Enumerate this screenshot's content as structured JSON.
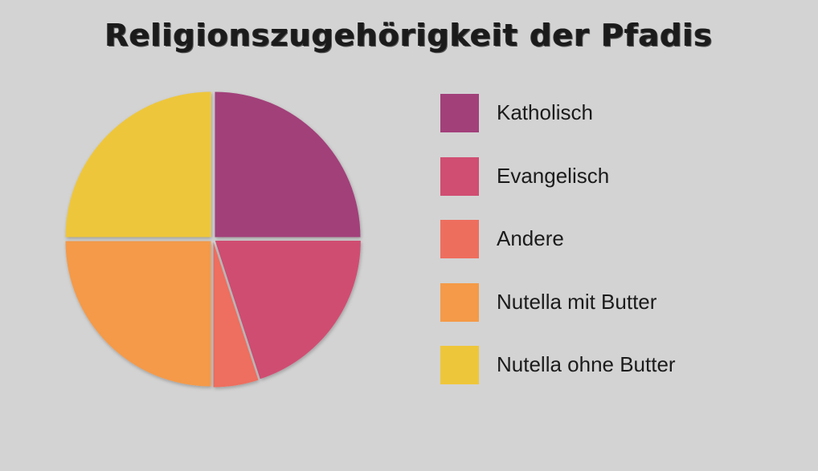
{
  "chart_data": {
    "type": "pie",
    "title": "Religionszugehörigkeit der Pfadis",
    "legend_position": "right",
    "series": [
      {
        "name": "Katholisch",
        "value": 25,
        "color": "#a2407a"
      },
      {
        "name": "Evangelisch",
        "value": 20,
        "color": "#d04e72"
      },
      {
        "name": "Andere",
        "value": 5,
        "color": "#ee6e5e"
      },
      {
        "name": "Nutella mit Butter",
        "value": 25,
        "color": "#f49a48"
      },
      {
        "name": "Nutella ohne Butter",
        "value": 25,
        "color": "#eec63a"
      }
    ]
  }
}
